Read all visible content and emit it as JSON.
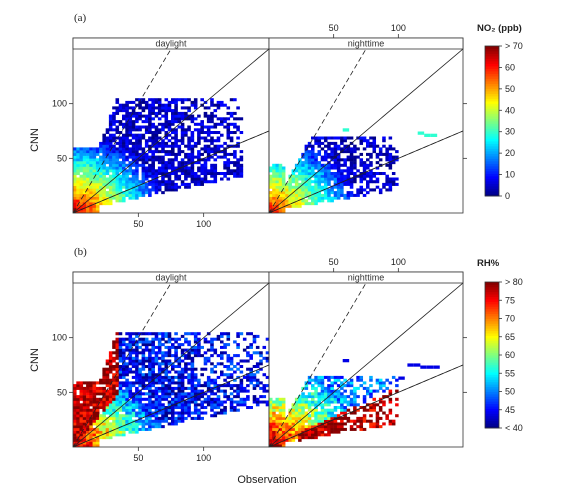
{
  "chart_data": [
    {
      "type": "heatmap",
      "panel_label": "(a)",
      "xlabel": "",
      "ylabel": "CNN",
      "xlim": [
        0,
        150
      ],
      "ylim": [
        0,
        150
      ],
      "x_ticks": [
        50,
        100
      ],
      "y_ticks": [
        50,
        100
      ],
      "strips": [
        "daylight",
        "nighttime"
      ],
      "reference_lines": {
        "solid": [
          1,
          0.5
        ],
        "dashed": [
          2,
          0.5
        ]
      },
      "colorbar": {
        "title": "NO₂ (ppb)",
        "ticks": [
          "> 70",
          "60",
          "50",
          "40",
          "30",
          "20",
          "10",
          "0"
        ],
        "range": [
          0,
          70
        ],
        "colors": [
          "#00007f",
          "#0000ff",
          "#007fff",
          "#00ffff",
          "#7fff7f",
          "#ffff00",
          "#ff7f00",
          "#ff0000",
          "#7f0000"
        ]
      },
      "panels": [
        {
          "strip": "daylight",
          "x_range": [
            0,
            130
          ],
          "y_range": [
            0,
            105
          ],
          "value_low": 5,
          "value_high": 65
        },
        {
          "strip": "nighttime",
          "x_range": [
            0,
            100
          ],
          "y_range": [
            0,
            70
          ],
          "value_low": 5,
          "value_high": 60,
          "isolated_cells": [
            [
              115,
              72
            ],
            [
              120,
              70
            ],
            [
              125,
              70
            ],
            [
              57,
              75
            ]
          ]
        }
      ]
    },
    {
      "type": "heatmap",
      "panel_label": "(b)",
      "xlabel": "Observation",
      "ylabel": "CNN",
      "xlim": [
        0,
        150
      ],
      "ylim": [
        0,
        150
      ],
      "x_ticks": [
        50,
        100
      ],
      "y_ticks": [
        50,
        100
      ],
      "strips": [
        "daylight",
        "nighttime"
      ],
      "reference_lines": {
        "solid": [
          1,
          0.5
        ],
        "dashed": [
          2,
          0.5
        ]
      },
      "colorbar": {
        "title": "RH%",
        "ticks": [
          "> 80",
          "75",
          "70",
          "65",
          "60",
          "55",
          "50",
          "45",
          "< 40"
        ],
        "range": [
          40,
          80
        ],
        "colors": [
          "#00007f",
          "#0000ff",
          "#007fff",
          "#00ffff",
          "#7fff7f",
          "#ffff00",
          "#ff7f00",
          "#ff0000",
          "#7f0000"
        ]
      },
      "panels": [
        {
          "strip": "daylight",
          "x_range": [
            0,
            150
          ],
          "y_range": [
            0,
            105
          ],
          "value_low": 45,
          "value_high": 78
        },
        {
          "strip": "nighttime",
          "x_range": [
            0,
            100
          ],
          "y_range": [
            0,
            65
          ],
          "value_low": 50,
          "value_high": 78,
          "isolated_cells": [
            [
              107,
              74
            ],
            [
              112,
              74
            ],
            [
              117,
              72
            ],
            [
              122,
              72
            ],
            [
              127,
              72
            ],
            [
              100,
              62
            ],
            [
              57,
              78
            ]
          ]
        }
      ]
    }
  ]
}
